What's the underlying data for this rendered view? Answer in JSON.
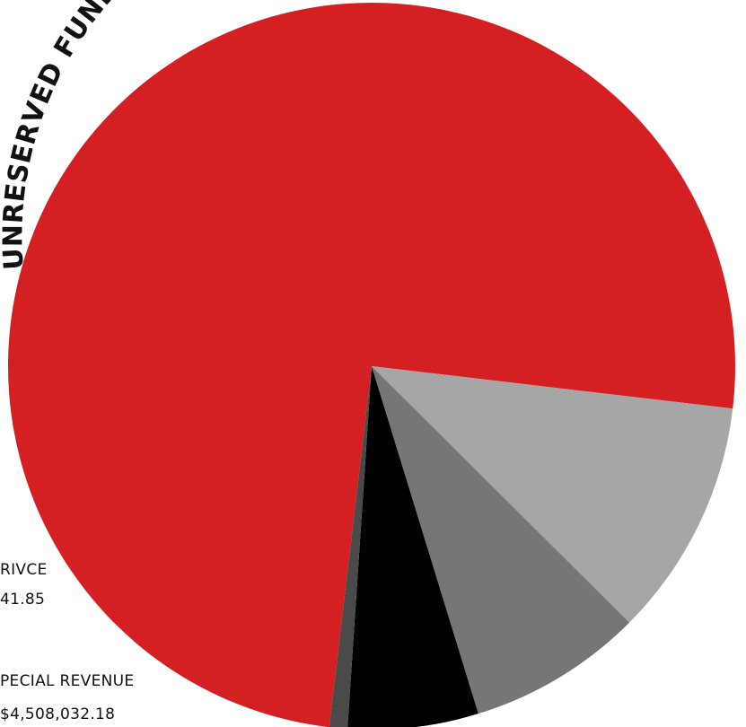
{
  "chart_data": {
    "type": "pie",
    "title": "UNRESERVED FUND EQUITY",
    "slices": [
      {
        "name": "",
        "value": 75.0,
        "color": "#d42022"
      },
      {
        "name": "",
        "value": 10.6,
        "color": "#a6a6a6"
      },
      {
        "name": "",
        "value": 7.8,
        "color": "#767676"
      },
      {
        "name": "",
        "value": 5.8,
        "color": "#000000"
      },
      {
        "name": "",
        "value": 0.8,
        "color": "#4a4a4a"
      }
    ],
    "annotations": [
      {
        "label": "RIVCE",
        "value": "41.85"
      },
      {
        "label": "PECIAL REVENUE",
        "value": "$4,508,032.18"
      }
    ]
  }
}
